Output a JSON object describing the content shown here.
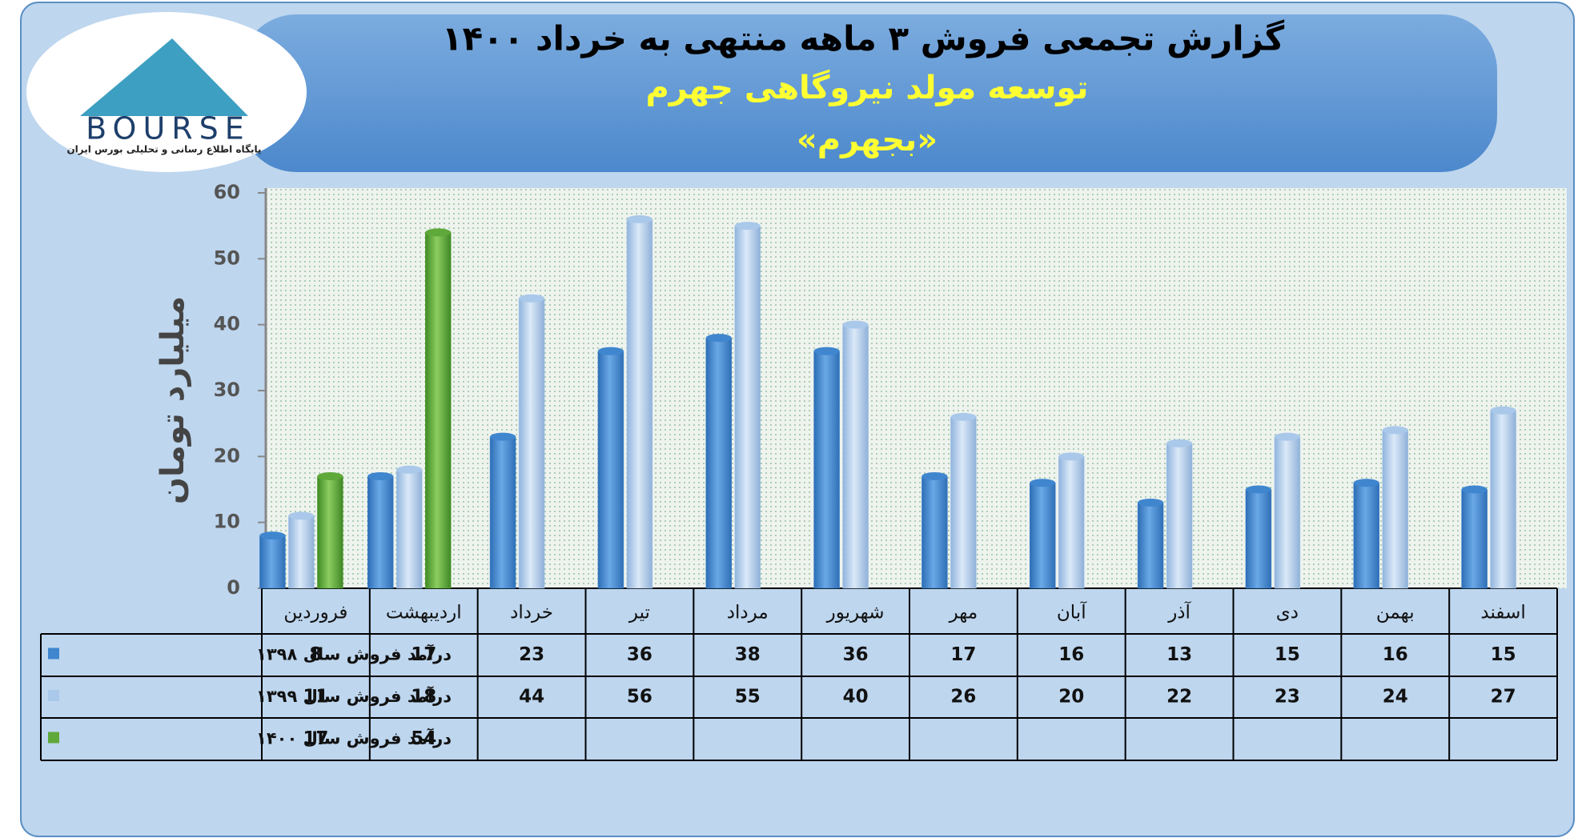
{
  "logo": {
    "name": "BOURSE",
    "tagline": "پایگاه اطلاع رسانی و تحلیلی بورس ایران"
  },
  "chart_data": {
    "type": "bar",
    "title": "گزارش تجمعی فروش ۳ ماهه منتهی به خرداد ۱۴۰۰",
    "subtitle": "توسعه مولد نیروگاهی جهرم",
    "symbol": "«بجهرم»",
    "y_label": "میلیارد تومان",
    "categories": [
      "فروردین",
      "اردیبهشت",
      "خرداد",
      "تیر",
      "مرداد",
      "شهریور",
      "مهر",
      "آبان",
      "آذر",
      "دی",
      "بهمن",
      "اسفند"
    ],
    "series": [
      {
        "name": "درآمد فروش سال ۱۳۹۸",
        "color": "#3f86cf",
        "values": [
          8,
          17,
          23,
          36,
          38,
          36,
          17,
          16,
          13,
          15,
          16,
          15
        ]
      },
      {
        "name": "درآمد فروش سال ۱۳۹۹",
        "color": "#a9c8ea",
        "values": [
          11,
          18,
          44,
          56,
          55,
          40,
          26,
          20,
          22,
          23,
          24,
          27
        ]
      },
      {
        "name": "درآمد فروش سال ۱۴۰۰",
        "color": "#5fa83a",
        "values": [
          17,
          54,
          null,
          null,
          null,
          null,
          null,
          null,
          null,
          null,
          null,
          null
        ]
      }
    ],
    "ylim": [
      0,
      60
    ],
    "yticks": [
      0,
      10,
      20,
      30,
      40,
      50,
      60
    ],
    "grid": false
  }
}
